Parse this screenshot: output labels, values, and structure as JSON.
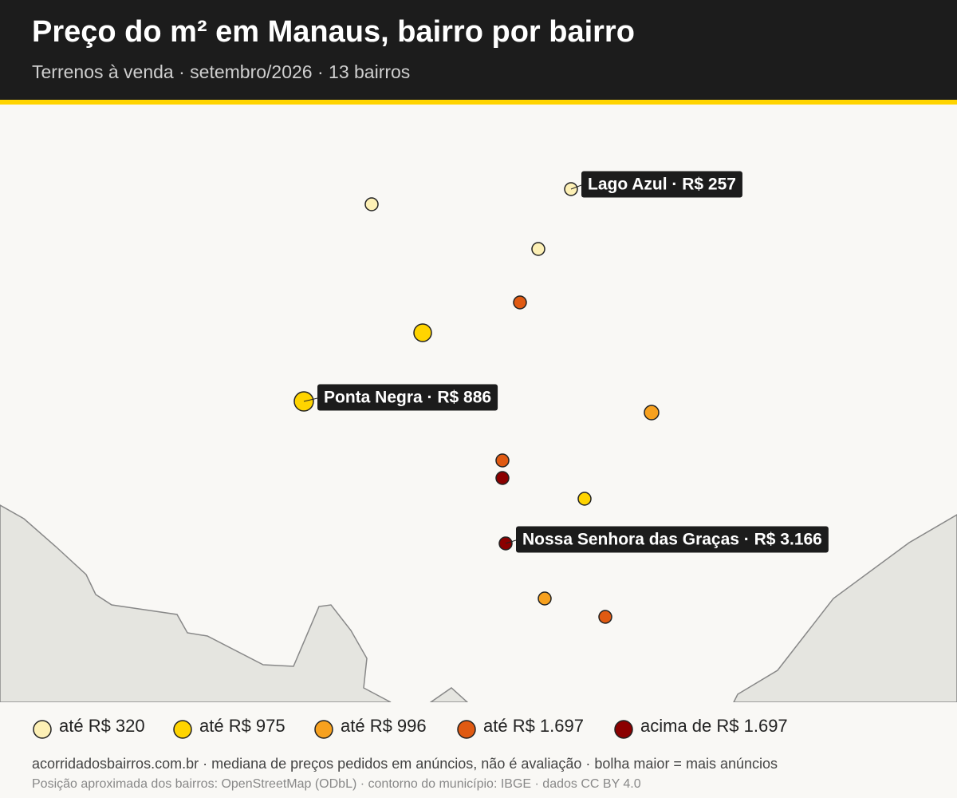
{
  "header": {
    "title": "Preço do m² em Manaus, bairro por bairro",
    "subtitle": "Terrenos à venda · setembro/2026 · 13 bairros"
  },
  "callouts": [
    "Lago Azul · R$ 257",
    "Ponta Negra · R$ 886",
    "Nossa Senhora das Graças · R$ 3.166"
  ],
  "legend": [
    {
      "label": "até R$ 320",
      "color": "#fdf0b5"
    },
    {
      "label": "até R$ 975",
      "color": "#ffd400"
    },
    {
      "label": "até R$ 996",
      "color": "#f7a11f"
    },
    {
      "label": "até R$ 1.697",
      "color": "#e05a12"
    },
    {
      "label": "acima de R$ 1.697",
      "color": "#8b0000"
    }
  ],
  "footer": {
    "note": "acorridadosbairros.com.br · mediana de preços pedidos em anúncios, não é avaliação · bolha maior = mais anúncios",
    "source": "Posição aproximada dos bairros: OpenStreetMap (ODbL) · contorno do município: IBGE · dados CC BY 4.0"
  }
}
